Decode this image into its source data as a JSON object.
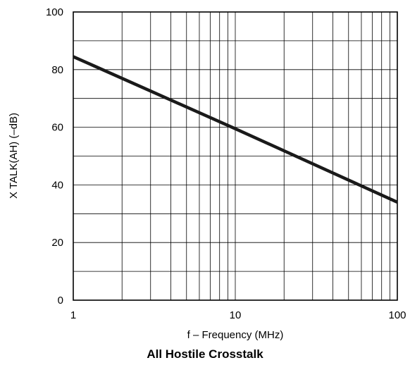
{
  "caption": "All Hostile Crosstalk",
  "chart_data": {
    "type": "line",
    "title": "",
    "xlabel": "f – Frequency (MHz)",
    "ylabel": "X TALK(AH) (–dB)",
    "xscale": "log",
    "xlim": [
      1,
      100
    ],
    "ylim": [
      0,
      100
    ],
    "x_ticks": [
      1,
      10,
      100
    ],
    "x_tick_labels": [
      "1",
      "10",
      "100"
    ],
    "y_ticks": [
      0,
      20,
      40,
      60,
      80,
      100
    ],
    "y_tick_labels": [
      "0",
      "20",
      "40",
      "60",
      "80",
      "100"
    ],
    "grid": true,
    "series": [
      {
        "x": [
          1,
          10,
          100
        ],
        "y": [
          84.5,
          59.5,
          34
        ]
      }
    ],
    "colors": {
      "line": "#1a1a1a",
      "grid": "#000000"
    }
  }
}
